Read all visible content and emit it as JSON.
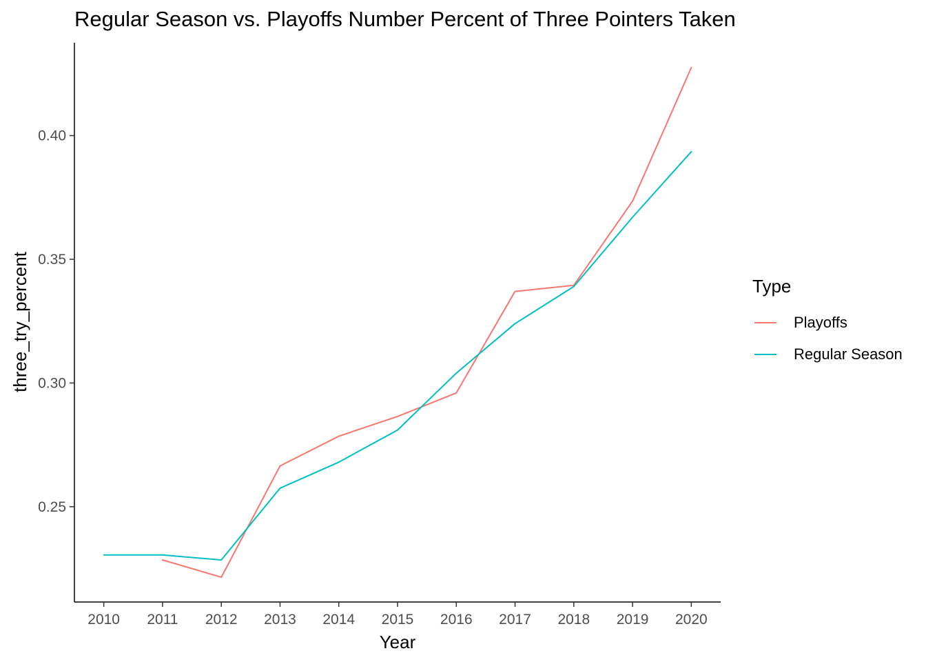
{
  "chart_data": {
    "type": "line",
    "title": "Regular Season vs. Playoffs Number Percent of Three Pointers Taken",
    "xlabel": "Year",
    "ylabel": "three_try_percent",
    "x": [
      2010,
      2011,
      2012,
      2013,
      2014,
      2015,
      2016,
      2017,
      2018,
      2019,
      2020
    ],
    "xticks": [
      "2010",
      "2011",
      "2012",
      "2013",
      "2014",
      "2015",
      "2016",
      "2017",
      "2018",
      "2019",
      "2020"
    ],
    "yticks": [
      "0.25",
      "0.30",
      "0.35",
      "0.40"
    ],
    "xlim": [
      2009.5,
      2020.5
    ],
    "ylim": [
      0.2115,
      0.4375
    ],
    "grid": false,
    "legend": {
      "title": "Type",
      "placement": "right"
    },
    "series": [
      {
        "name": "Playoffs",
        "color": "#F8766D",
        "values": [
          null,
          0.2285,
          0.2215,
          0.2665,
          0.2785,
          0.2865,
          0.296,
          0.337,
          0.3395,
          0.3735,
          0.4275
        ]
      },
      {
        "name": "Regular Season",
        "color": "#00BFC4",
        "values": [
          0.2305,
          0.2305,
          0.2285,
          0.2575,
          0.268,
          0.281,
          0.304,
          0.324,
          0.339,
          0.367,
          0.3935
        ]
      }
    ]
  }
}
